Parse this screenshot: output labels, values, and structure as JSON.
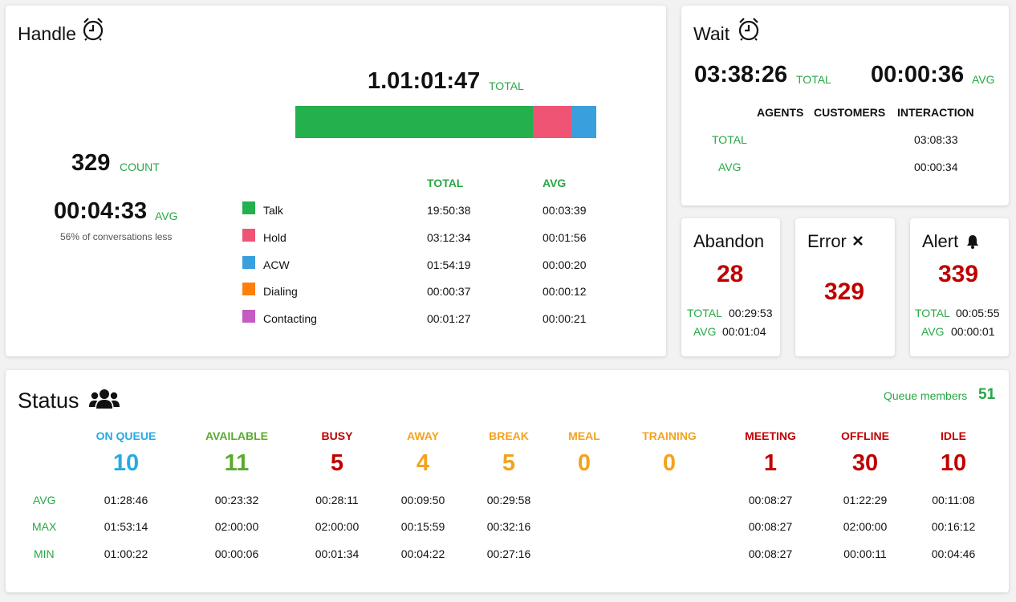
{
  "handle": {
    "title": "Handle",
    "total_value": "1.01:01:47",
    "total_label": "TOTAL",
    "bar": [
      {
        "name": "Talk",
        "fraction": 0.788,
        "color": "#23b04d"
      },
      {
        "name": "Hold",
        "fraction": 0.128,
        "color": "#ef5475"
      },
      {
        "name": "ACW",
        "fraction": 0.084,
        "color": "#3aa0dd"
      }
    ],
    "count_value": "329",
    "count_label": "COUNT",
    "avg_value": "00:04:33",
    "avg_label": "AVG",
    "avg_note": "56% of conversations less",
    "col_total": "TOTAL",
    "col_avg": "AVG",
    "rows": [
      {
        "name": "Talk",
        "color": "#23b04d",
        "total": "19:50:38",
        "avg": "00:03:39"
      },
      {
        "name": "Hold",
        "color": "#ef5475",
        "total": "03:12:34",
        "avg": "00:01:56"
      },
      {
        "name": "ACW",
        "color": "#3aa0dd",
        "total": "01:54:19",
        "avg": "00:00:20"
      },
      {
        "name": "Dialing",
        "color": "#ff7f0e",
        "total": "00:00:37",
        "avg": "00:00:12"
      },
      {
        "name": "Contacting",
        "color": "#c65bc4",
        "total": "00:01:27",
        "avg": "00:00:21"
      }
    ]
  },
  "wait": {
    "title": "Wait",
    "total_value": "03:38:26",
    "total_label": "TOTAL",
    "avg_value": "00:00:36",
    "avg_label": "AVG",
    "col_agents": "AGENTS",
    "col_customers": "CUSTOMERS",
    "col_interaction": "INTERACTION",
    "row_total_label": "TOTAL",
    "row_total_interaction": "03:08:33",
    "row_avg_label": "AVG",
    "row_avg_interaction": "00:00:34"
  },
  "abandon": {
    "title": "Abandon",
    "value": "28",
    "total_label": "TOTAL",
    "total_value": "00:29:53",
    "avg_label": "AVG",
    "avg_value": "00:01:04"
  },
  "error": {
    "title": "Error",
    "value": "329"
  },
  "alert": {
    "title": "Alert",
    "value": "339",
    "total_label": "TOTAL",
    "total_value": "00:05:55",
    "avg_label": "AVG",
    "avg_value": "00:00:01"
  },
  "status": {
    "title": "Status",
    "queue_members_label": "Queue members",
    "queue_members_value": "51",
    "row_labels": {
      "avg": "AVG",
      "max": "MAX",
      "min": "MIN"
    },
    "columns": [
      {
        "label": "ON QUEUE",
        "count": "10",
        "color": "#27aae1",
        "avg": "01:28:46",
        "max": "01:53:14",
        "min": "01:00:22"
      },
      {
        "label": "AVAILABLE",
        "count": "11",
        "color": "#5aaa2e",
        "avg": "00:23:32",
        "max": "02:00:00",
        "min": "00:00:06"
      },
      {
        "label": "BUSY",
        "count": "5",
        "color": "#c00000",
        "avg": "00:28:11",
        "max": "02:00:00",
        "min": "00:01:34"
      },
      {
        "label": "AWAY",
        "count": "4",
        "color": "#f4a21e",
        "avg": "00:09:50",
        "max": "00:15:59",
        "min": "00:04:22"
      },
      {
        "label": "BREAK",
        "count": "5",
        "color": "#f4a21e",
        "avg": "00:29:58",
        "max": "00:32:16",
        "min": "00:27:16"
      },
      {
        "label": "MEAL",
        "count": "0",
        "color": "#f4a21e",
        "avg": "",
        "max": "",
        "min": ""
      },
      {
        "label": "TRAINING",
        "count": "0",
        "color": "#f4a21e",
        "avg": "",
        "max": "",
        "min": ""
      },
      {
        "label": "MEETING",
        "count": "1",
        "color": "#c00000",
        "avg": "00:08:27",
        "max": "00:08:27",
        "min": "00:08:27"
      },
      {
        "label": "OFFLINE",
        "count": "30",
        "color": "#c00000",
        "avg": "01:22:29",
        "max": "02:00:00",
        "min": "00:00:11"
      },
      {
        "label": "IDLE",
        "count": "10",
        "color": "#c00000",
        "avg": "00:11:08",
        "max": "00:16:12",
        "min": "00:04:46"
      }
    ]
  }
}
